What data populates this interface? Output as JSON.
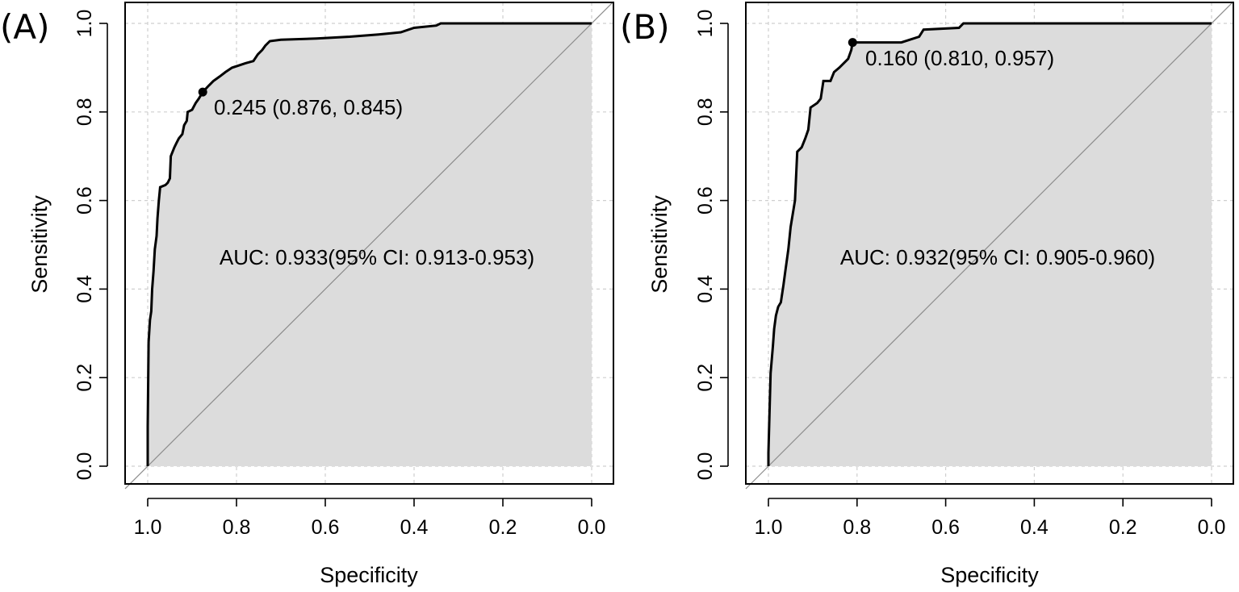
{
  "chart_data": [
    {
      "type": "line",
      "panel_label": "(A)",
      "xlabel": "Specificity",
      "ylabel": "Sensitivity",
      "xlim": [
        1.0,
        0.0
      ],
      "ylim": [
        0.0,
        1.0
      ],
      "x_ticks": [
        "1.0",
        "0.8",
        "0.6",
        "0.4",
        "0.2",
        "0.0"
      ],
      "y_ticks": [
        "0.0",
        "0.2",
        "0.4",
        "0.6",
        "0.8",
        "1.0"
      ],
      "grid": true,
      "auc_label": "AUC: 0.933(95% CI: 0.913-0.953)",
      "threshold_label": "0.245 (0.876, 0.845)",
      "threshold_point": {
        "specificity": 0.876,
        "sensitivity": 0.845
      },
      "curve": [
        [
          1.0,
          0.0
        ],
        [
          1.0,
          0.09
        ],
        [
          0.998,
          0.28
        ],
        [
          0.995,
          0.33
        ],
        [
          0.992,
          0.35
        ],
        [
          0.99,
          0.4
        ],
        [
          0.987,
          0.44
        ],
        [
          0.984,
          0.49
        ],
        [
          0.98,
          0.52
        ],
        [
          0.978,
          0.56
        ],
        [
          0.975,
          0.6
        ],
        [
          0.972,
          0.63
        ],
        [
          0.96,
          0.635
        ],
        [
          0.955,
          0.64
        ],
        [
          0.95,
          0.65
        ],
        [
          0.948,
          0.7
        ],
        [
          0.94,
          0.72
        ],
        [
          0.935,
          0.73
        ],
        [
          0.93,
          0.74
        ],
        [
          0.922,
          0.75
        ],
        [
          0.918,
          0.77
        ],
        [
          0.912,
          0.78
        ],
        [
          0.91,
          0.8
        ],
        [
          0.9,
          0.805
        ],
        [
          0.892,
          0.82
        ],
        [
          0.885,
          0.83
        ],
        [
          0.876,
          0.845
        ],
        [
          0.862,
          0.86
        ],
        [
          0.852,
          0.87
        ],
        [
          0.838,
          0.88
        ],
        [
          0.825,
          0.89
        ],
        [
          0.81,
          0.9
        ],
        [
          0.795,
          0.905
        ],
        [
          0.78,
          0.91
        ],
        [
          0.762,
          0.915
        ],
        [
          0.752,
          0.93
        ],
        [
          0.742,
          0.94
        ],
        [
          0.735,
          0.95
        ],
        [
          0.725,
          0.96
        ],
        [
          0.7,
          0.963
        ],
        [
          0.62,
          0.966
        ],
        [
          0.545,
          0.97
        ],
        [
          0.48,
          0.975
        ],
        [
          0.45,
          0.978
        ],
        [
          0.43,
          0.98
        ],
        [
          0.4,
          0.99
        ],
        [
          0.35,
          0.995
        ],
        [
          0.34,
          1.0
        ],
        [
          0.0,
          1.0
        ]
      ]
    },
    {
      "type": "line",
      "panel_label": "(B)",
      "xlabel": "Specificity",
      "ylabel": "Sensitivity",
      "xlim": [
        1.0,
        0.0
      ],
      "ylim": [
        0.0,
        1.0
      ],
      "x_ticks": [
        "1.0",
        "0.8",
        "0.6",
        "0.4",
        "0.2",
        "0.0"
      ],
      "y_ticks": [
        "0.0",
        "0.2",
        "0.4",
        "0.6",
        "0.8",
        "1.0"
      ],
      "grid": true,
      "auc_label": "AUC: 0.932(95% CI: 0.905-0.960)",
      "threshold_label": "0.160 (0.810, 0.957)",
      "threshold_point": {
        "specificity": 0.81,
        "sensitivity": 0.957
      },
      "curve": [
        [
          1.0,
          0.0
        ],
        [
          1.0,
          0.03
        ],
        [
          0.995,
          0.21
        ],
        [
          0.99,
          0.27
        ],
        [
          0.987,
          0.31
        ],
        [
          0.983,
          0.34
        ],
        [
          0.978,
          0.36
        ],
        [
          0.972,
          0.37
        ],
        [
          0.966,
          0.41
        ],
        [
          0.962,
          0.44
        ],
        [
          0.955,
          0.49
        ],
        [
          0.95,
          0.54
        ],
        [
          0.94,
          0.6
        ],
        [
          0.935,
          0.71
        ],
        [
          0.925,
          0.72
        ],
        [
          0.917,
          0.74
        ],
        [
          0.91,
          0.76
        ],
        [
          0.905,
          0.81
        ],
        [
          0.89,
          0.82
        ],
        [
          0.882,
          0.83
        ],
        [
          0.876,
          0.87
        ],
        [
          0.86,
          0.87
        ],
        [
          0.852,
          0.89
        ],
        [
          0.84,
          0.9
        ],
        [
          0.83,
          0.91
        ],
        [
          0.82,
          0.92
        ],
        [
          0.813,
          0.94
        ],
        [
          0.81,
          0.957
        ],
        [
          0.7,
          0.957
        ],
        [
          0.66,
          0.97
        ],
        [
          0.65,
          0.986
        ],
        [
          0.57,
          0.99
        ],
        [
          0.56,
          1.0
        ],
        [
          0.0,
          1.0
        ]
      ]
    }
  ]
}
